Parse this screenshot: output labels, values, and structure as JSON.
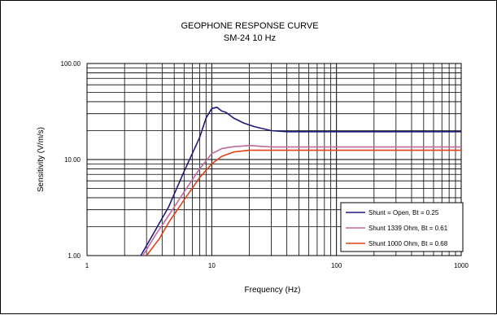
{
  "chart_data": {
    "type": "line",
    "title": "GEOPHONE RESPONSE CURVE",
    "subtitle": "SM-24 10 Hz",
    "xlabel": "Frequency (Hz)",
    "ylabel": "Sensitivity (V/m/s)",
    "x_scale": "log",
    "y_scale": "log",
    "xlim": [
      1,
      1000
    ],
    "ylim": [
      1,
      100
    ],
    "x_ticks": [
      {
        "value": 1,
        "label": "1"
      },
      {
        "value": 10,
        "label": "10"
      },
      {
        "value": 100,
        "label": "100"
      },
      {
        "value": 1000,
        "label": "1000"
      }
    ],
    "y_ticks": [
      {
        "value": 100,
        "label": "100.00"
      },
      {
        "value": 10,
        "label": "10.00"
      },
      {
        "value": 1,
        "label": "1.00"
      }
    ],
    "grid": true,
    "legend_position": "bottom-right",
    "series": [
      {
        "name": "Shunt = Open, Bt = 0.25",
        "color": "#1f1a7a",
        "x": [
          2.7,
          3.5,
          4.5,
          6,
          8,
          9,
          10,
          11,
          12,
          13,
          15,
          18,
          22,
          30,
          40,
          60,
          100,
          1000
        ],
        "y": [
          1.0,
          1.8,
          3.2,
          7.5,
          17.0,
          27.0,
          34.0,
          35.0,
          32.0,
          31.0,
          27.0,
          24.0,
          22.0,
          20.0,
          19.5,
          19.5,
          19.5,
          19.5
        ]
      },
      {
        "name": "Shunt 1339 Ohm, Bt = 0.61",
        "color": "#c06a9a",
        "x": [
          2.8,
          3.5,
          4.5,
          6,
          8,
          10,
          12,
          15,
          20,
          30,
          100,
          1000
        ],
        "y": [
          1.0,
          1.6,
          2.6,
          4.6,
          8.0,
          11.5,
          13.0,
          13.6,
          14.0,
          13.5,
          13.5,
          13.5
        ]
      },
      {
        "name": "Shunt 1000 Ohm, Bt = 0.68",
        "color": "#e0401a",
        "x": [
          3.0,
          3.8,
          4.5,
          6,
          8,
          10,
          12,
          15,
          20,
          30,
          100,
          1000
        ],
        "y": [
          1.0,
          1.5,
          2.2,
          3.8,
          6.5,
          9.0,
          10.8,
          12.0,
          12.5,
          12.5,
          12.5,
          12.5
        ]
      }
    ]
  }
}
